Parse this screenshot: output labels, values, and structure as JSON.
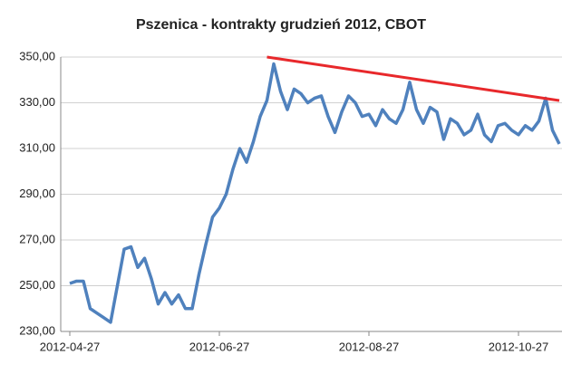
{
  "chart_data": {
    "type": "line",
    "title": "Pszenica - kontrakty grudzień 2012, CBOT",
    "categories": [
      "2012-04-27",
      null,
      null,
      null,
      null,
      null,
      null,
      null,
      null,
      null,
      null,
      null,
      null,
      null,
      null,
      null,
      null,
      null,
      null,
      null,
      null,
      null,
      "2012-06-27",
      null,
      null,
      null,
      null,
      null,
      null,
      null,
      null,
      null,
      null,
      null,
      null,
      null,
      null,
      null,
      null,
      null,
      null,
      null,
      null,
      null,
      "2012-08-27",
      null,
      null,
      null,
      null,
      null,
      null,
      null,
      null,
      null,
      null,
      null,
      null,
      null,
      null,
      null,
      null,
      null,
      null,
      null,
      null,
      null,
      "2012-10-27",
      null,
      null,
      null,
      null,
      null,
      null
    ],
    "series": [
      {
        "name": "Pszenica",
        "color": "#4f81bd",
        "values": [
          251,
          252,
          252,
          240,
          238,
          236,
          234,
          250,
          266,
          267,
          258,
          262,
          253,
          242,
          247,
          242,
          246,
          240,
          240,
          255,
          268,
          280,
          284,
          290,
          301,
          310,
          304,
          313,
          324,
          331,
          347,
          335,
          327,
          336,
          334,
          330,
          332,
          333,
          324,
          317,
          326,
          333,
          330,
          324,
          325,
          320,
          327,
          323,
          321,
          327,
          339,
          327,
          321,
          328,
          326,
          314,
          323,
          321,
          316,
          318,
          325,
          316,
          313,
          320,
          321,
          318,
          316,
          320,
          318,
          322,
          332,
          318,
          312
        ]
      }
    ],
    "trend_line": {
      "color": "#e8282b",
      "from_index": 29,
      "to_index": 72,
      "values": [
        350,
        331
      ]
    },
    "ylim": [
      230,
      350
    ],
    "yticks": [
      {
        "value": 230,
        "label": "230,00"
      },
      {
        "value": 250,
        "label": "250,00"
      },
      {
        "value": 270,
        "label": "270,00"
      },
      {
        "value": 290,
        "label": "290,00"
      },
      {
        "value": 310,
        "label": "310,00"
      },
      {
        "value": 330,
        "label": "330,00"
      },
      {
        "value": 350,
        "label": "350,00"
      }
    ],
    "grid": true
  }
}
